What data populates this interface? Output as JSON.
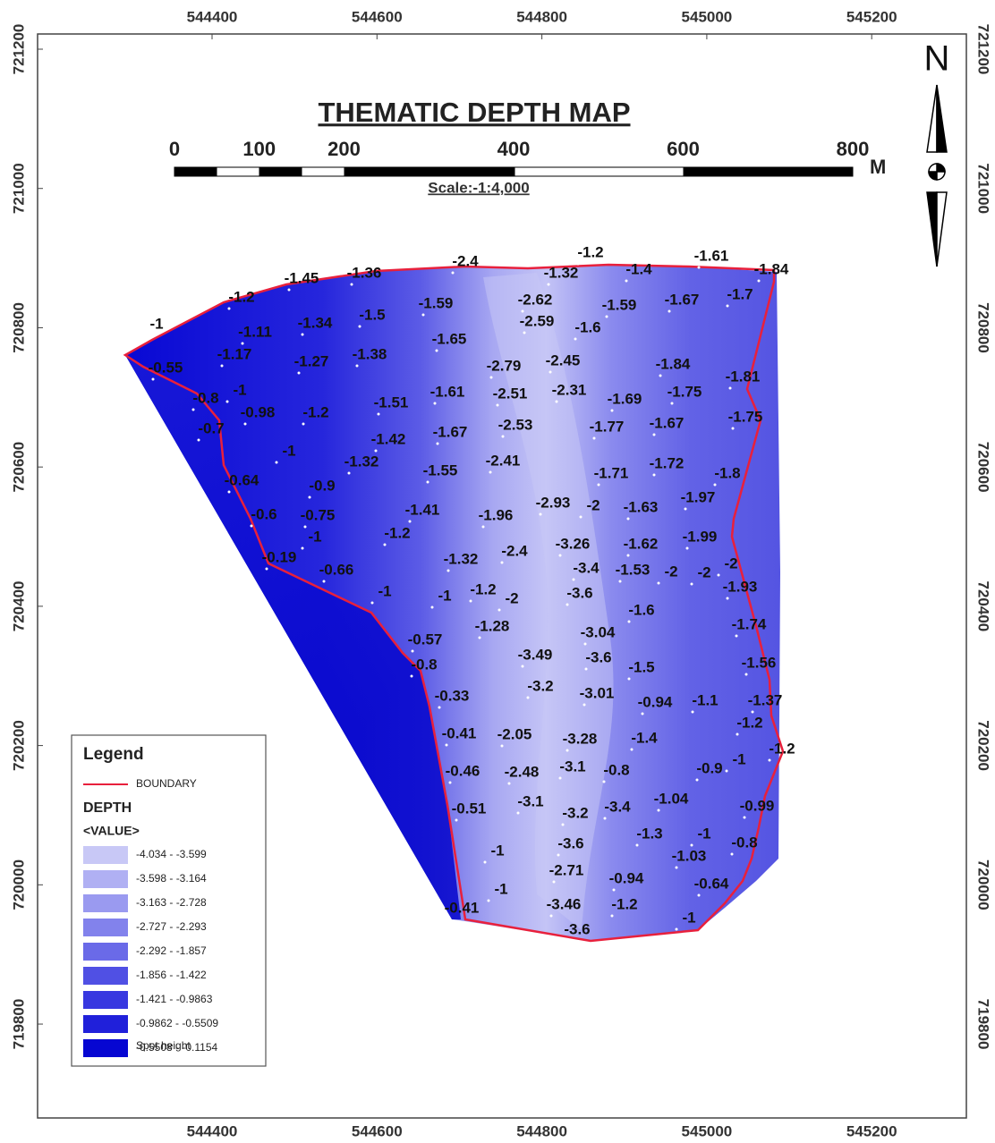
{
  "title": "THEMATIC DEPTH MAP",
  "scale_bar": {
    "ticks": [
      0,
      100,
      200,
      400,
      600,
      800
    ],
    "unit": "M",
    "scale": "Scale:-1:4,000"
  },
  "north": "N",
  "x_ticks": [
    544400,
    544600,
    544800,
    545000,
    545200
  ],
  "y_ticks": [
    721200,
    721000,
    720800,
    720600,
    720400,
    720200,
    720000,
    719800
  ],
  "legend": {
    "title": "Legend",
    "boundary": "BOUNDARY",
    "field": "DEPTH",
    "value_header": "<VALUE>",
    "classes": [
      {
        "label": "-4.034 - -3.599",
        "color": "#c8c8f6"
      },
      {
        "label": "-3.598 - -3.164",
        "color": "#b0b0f3"
      },
      {
        "label": "-3.163 - -2.728",
        "color": "#9a9af0"
      },
      {
        "label": "-2.727 - -2.293",
        "color": "#8282ec"
      },
      {
        "label": "-2.292 - -1.857",
        "color": "#6a6ae8"
      },
      {
        "label": "-1.856 - -1.422",
        "color": "#5050e4"
      },
      {
        "label": "-1.421 - -0.9863",
        "color": "#3838e0"
      },
      {
        "label": "-0.9862 - -0.5509",
        "color": "#2020da"
      },
      {
        "label": "-0.5508 - -0.1154",
        "color": "#0606d2"
      }
    ],
    "spot_height": "Spot height"
  },
  "spot_heights": [
    -2.4,
    -1.2,
    -1.61,
    -1.45,
    -1.36,
    -1.32,
    -1.4,
    -1.84,
    -1.2,
    -1.59,
    -2.62,
    -1.59,
    -1.67,
    -1.7,
    -1,
    -1.11,
    -1.34,
    -1.5,
    -2.59,
    -1.6,
    -1.65,
    -1.17,
    -1.27,
    -1.38,
    -2.79,
    -2.45,
    -1.84,
    -1.81,
    -0.55,
    -0.8,
    -1,
    -0.98,
    -1.2,
    -1.51,
    -1.61,
    -2.51,
    -2.31,
    -1.69,
    -1.75,
    -1.75,
    -0.7,
    -1.42,
    -1.67,
    -2.53,
    -1.77,
    -1.67,
    -1,
    -1.32,
    -2.41,
    -1.55,
    -1.71,
    -1.72,
    -1.8,
    -0.64,
    -0.9,
    -0.6,
    -0.75,
    -1.41,
    -1.96,
    -2.93,
    -2,
    -1.63,
    -1.97,
    -1,
    -1.2,
    -3.26,
    -1.62,
    -1.99,
    -0.19,
    -0.66,
    -1.32,
    -2.4,
    -3.4,
    -1.53,
    -2,
    -2,
    -2,
    -1,
    -1,
    -1.2,
    -2,
    -3.6,
    -1.93,
    -1.6,
    -1.28,
    -1.74,
    -0.57,
    -3.04,
    -0.8,
    -3.49,
    -3.6,
    -1.5,
    -1.56,
    -0.33,
    -3.2,
    -3.01,
    -0.94,
    -1.1,
    -1.37,
    -1.2,
    -0.41,
    -2.05,
    -3.28,
    -1.4,
    -1.2,
    -0.46,
    -2.48,
    -3.1,
    -0.8,
    -0.9,
    -1,
    -0.51,
    -3.1,
    -3.2,
    -3.4,
    -1.04,
    -0.99,
    -1.3,
    -1,
    -1.03,
    -0.8,
    -1,
    -3.6,
    -2.71,
    -0.94,
    -0.64,
    -1,
    -0.41,
    -3.46,
    -1.2,
    -1,
    -3.6
  ]
}
